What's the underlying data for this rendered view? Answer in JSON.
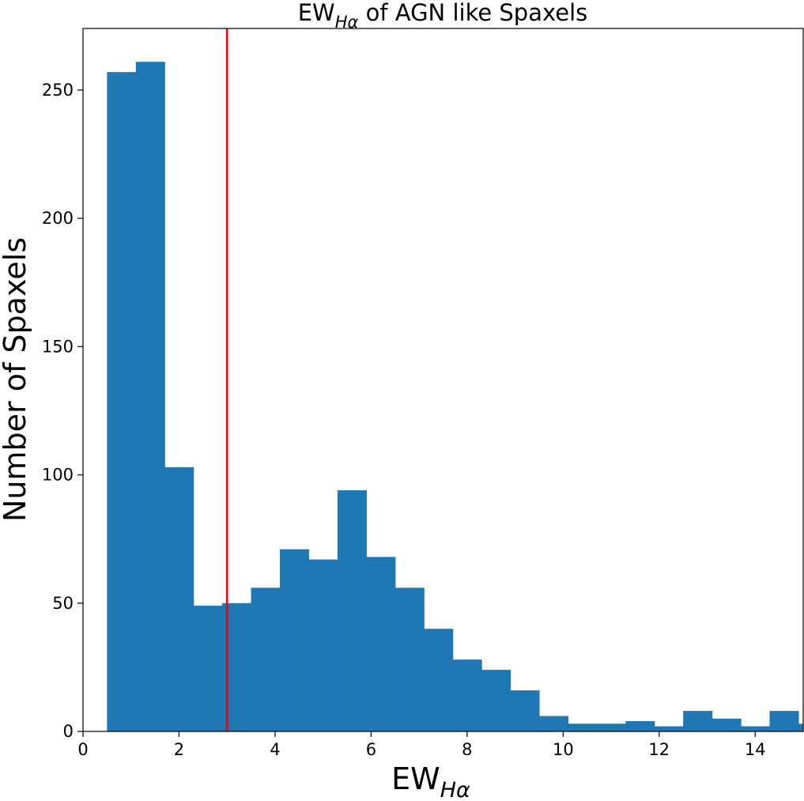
{
  "colors": {
    "bar": "#1f77b4",
    "threshold_line": "#e8000b",
    "axes": "#000000"
  },
  "chart_data": {
    "type": "bar",
    "histogram": true,
    "title": {
      "prefix": "EW",
      "subscript": "Hα",
      "suffix": " of AGN like Spaxels"
    },
    "xlabel": {
      "main": "EW",
      "subscript": "Hα"
    },
    "ylabel": "Number of Spaxels",
    "xlim": [
      0,
      15
    ],
    "ylim": [
      0,
      274
    ],
    "xticks": [
      0,
      2,
      4,
      6,
      8,
      10,
      12,
      14
    ],
    "yticks": [
      0,
      50,
      100,
      150,
      200,
      250
    ],
    "grid": false,
    "bin_edges": [
      0.5,
      1.1,
      1.7,
      2.3,
      2.9,
      3.5,
      4.1,
      4.7,
      5.3,
      5.9,
      6.5,
      7.1,
      7.7,
      8.3,
      8.9,
      9.5,
      10.1,
      10.7,
      11.3,
      11.9,
      12.5,
      13.1,
      13.7,
      14.3,
      14.9,
      15.5
    ],
    "values": [
      257,
      261,
      103,
      49,
      50,
      56,
      71,
      67,
      94,
      68,
      56,
      40,
      28,
      24,
      16,
      6,
      3,
      3,
      4,
      2,
      8,
      5,
      2,
      8,
      3
    ],
    "threshold": {
      "x": 3
    }
  }
}
